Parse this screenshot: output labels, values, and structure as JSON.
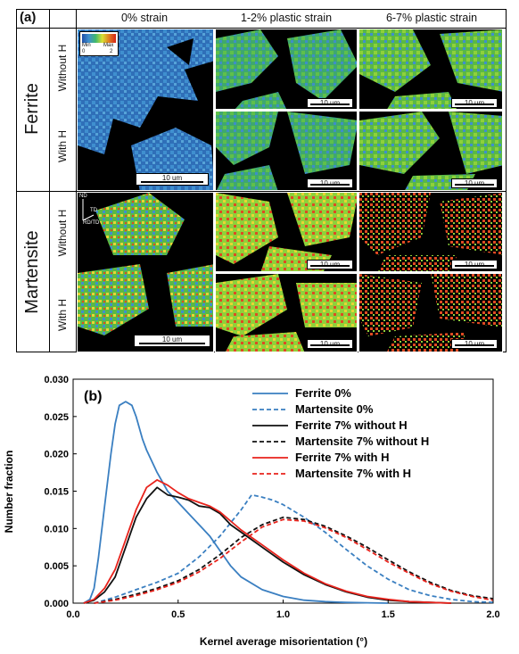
{
  "panel_a": {
    "label": "(a)",
    "columns": [
      "0% strain",
      "1-2% plastic strain",
      "6-7% plastic strain"
    ],
    "rows": [
      {
        "group": "Ferrite",
        "sub": [
          "Without H",
          "With H"
        ]
      },
      {
        "group": "Martensite",
        "sub": [
          "Without H",
          "With H"
        ]
      }
    ],
    "colorbar": {
      "min_label": "Min",
      "max_label": "Max",
      "min_value": "0",
      "max_value": "2"
    },
    "scalebar_text": "10 um",
    "axes_labels": {
      "nd": "ND",
      "td": "TD",
      "rd": "RD/TD"
    }
  },
  "panel_b": {
    "label": "(b)"
  },
  "chart_data": {
    "type": "line",
    "xlabel": "Kernel average misorientation (°)",
    "ylabel": "Number fraction",
    "xlim": [
      0,
      2.0
    ],
    "ylim": [
      0,
      0.03
    ],
    "xticks": [
      "0.0",
      "0.5",
      "1.0",
      "1.5",
      "2.0"
    ],
    "yticks": [
      "0.000",
      "0.005",
      "0.010",
      "0.015",
      "0.020",
      "0.025",
      "0.030"
    ],
    "legend_position": "top-right",
    "series": [
      {
        "name": "Ferrite 0%",
        "color": "#3a7fc1",
        "dash": "solid",
        "x": [
          0.05,
          0.08,
          0.1,
          0.12,
          0.15,
          0.18,
          0.2,
          0.22,
          0.25,
          0.28,
          0.3,
          0.33,
          0.35,
          0.4,
          0.45,
          0.5,
          0.55,
          0.6,
          0.65,
          0.7,
          0.75,
          0.8,
          0.9,
          1.0,
          1.1,
          1.2,
          1.3,
          1.4,
          1.5
        ],
        "y": [
          0.0,
          0.0005,
          0.002,
          0.006,
          0.013,
          0.02,
          0.024,
          0.0265,
          0.027,
          0.0265,
          0.025,
          0.022,
          0.0205,
          0.0175,
          0.015,
          0.0135,
          0.012,
          0.0105,
          0.009,
          0.007,
          0.005,
          0.0035,
          0.0018,
          0.0009,
          0.0004,
          0.0002,
          0.0001,
          5e-05,
          0.0
        ]
      },
      {
        "name": "Martensite 0%",
        "color": "#3a7fc1",
        "dash": "dashed",
        "x": [
          0.1,
          0.2,
          0.3,
          0.4,
          0.5,
          0.6,
          0.7,
          0.8,
          0.85,
          0.9,
          0.95,
          1.0,
          1.1,
          1.2,
          1.3,
          1.4,
          1.5,
          1.6,
          1.7,
          1.8,
          1.9,
          2.0
        ],
        "y": [
          0.0,
          0.0008,
          0.0018,
          0.0028,
          0.004,
          0.0062,
          0.009,
          0.0125,
          0.0145,
          0.0142,
          0.0138,
          0.0132,
          0.0115,
          0.0095,
          0.0072,
          0.005,
          0.0032,
          0.0018,
          0.001,
          0.0005,
          0.0002,
          0.0001
        ]
      },
      {
        "name": "Ferrite 7% without H",
        "color": "#111111",
        "dash": "solid",
        "x": [
          0.05,
          0.1,
          0.15,
          0.2,
          0.25,
          0.3,
          0.35,
          0.4,
          0.45,
          0.5,
          0.55,
          0.6,
          0.65,
          0.7,
          0.75,
          0.8,
          0.85,
          0.9,
          1.0,
          1.1,
          1.2,
          1.3,
          1.4,
          1.5,
          1.6,
          1.7,
          1.8
        ],
        "y": [
          0.0,
          0.0004,
          0.0015,
          0.0035,
          0.0075,
          0.0115,
          0.014,
          0.0155,
          0.0145,
          0.0142,
          0.0138,
          0.013,
          0.0128,
          0.012,
          0.0105,
          0.0095,
          0.0085,
          0.0075,
          0.0055,
          0.0038,
          0.0025,
          0.0015,
          0.0008,
          0.0004,
          0.0002,
          0.0001,
          0.0
        ]
      },
      {
        "name": "Martensite 7% without H",
        "color": "#111111",
        "dash": "dashed",
        "x": [
          0.1,
          0.2,
          0.3,
          0.4,
          0.5,
          0.6,
          0.7,
          0.8,
          0.9,
          1.0,
          1.1,
          1.2,
          1.3,
          1.4,
          1.5,
          1.6,
          1.7,
          1.8,
          1.9,
          2.0
        ],
        "y": [
          0.0,
          0.0005,
          0.0012,
          0.002,
          0.003,
          0.0045,
          0.0065,
          0.0088,
          0.0105,
          0.0115,
          0.0112,
          0.0103,
          0.009,
          0.0075,
          0.0058,
          0.0042,
          0.0028,
          0.0017,
          0.001,
          0.0006
        ]
      },
      {
        "name": "Ferrite 7% with H",
        "color": "#e8231c",
        "dash": "solid",
        "x": [
          0.05,
          0.1,
          0.15,
          0.2,
          0.25,
          0.3,
          0.35,
          0.4,
          0.45,
          0.5,
          0.55,
          0.6,
          0.65,
          0.7,
          0.75,
          0.8,
          0.85,
          0.9,
          1.0,
          1.1,
          1.2,
          1.3,
          1.4,
          1.5,
          1.6,
          1.7,
          1.8
        ],
        "y": [
          0.0,
          0.0005,
          0.002,
          0.0045,
          0.0085,
          0.0125,
          0.0155,
          0.0165,
          0.0158,
          0.0148,
          0.014,
          0.0135,
          0.013,
          0.0122,
          0.011,
          0.0098,
          0.0088,
          0.0078,
          0.0058,
          0.004,
          0.0026,
          0.0016,
          0.0009,
          0.0005,
          0.0002,
          0.0001,
          0.0
        ]
      },
      {
        "name": "Martensite 7% with H",
        "color": "#e8231c",
        "dash": "dashed",
        "x": [
          0.1,
          0.2,
          0.3,
          0.4,
          0.5,
          0.6,
          0.7,
          0.8,
          0.9,
          1.0,
          1.1,
          1.2,
          1.3,
          1.4,
          1.5,
          1.6,
          1.7,
          1.8,
          1.9,
          2.0
        ],
        "y": [
          0.0,
          0.0004,
          0.001,
          0.0018,
          0.0028,
          0.0042,
          0.006,
          0.0082,
          0.0102,
          0.0112,
          0.011,
          0.0101,
          0.0088,
          0.0072,
          0.0055,
          0.004,
          0.0026,
          0.0016,
          0.0009,
          0.0004
        ]
      }
    ]
  }
}
